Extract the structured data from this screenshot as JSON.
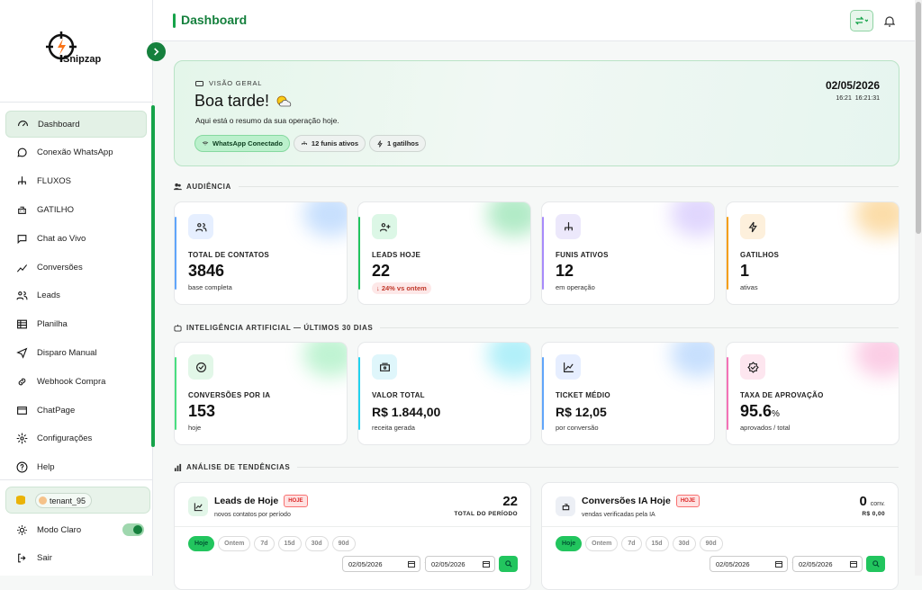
{
  "sidebar": {
    "brand": "Snipzap",
    "menu": [
      "Dashboard",
      "Conexão WhatsApp",
      "FLUXOS",
      "GATILHO",
      "Chat ao Vivo",
      "Conversões",
      "Leads",
      "Planilha",
      "Disparo Manual",
      "Webhook Compra",
      "ChatPage",
      "Configurações",
      "Help"
    ],
    "tenant": "tenant_95",
    "theme": "Modo Claro",
    "logout": "Sair"
  },
  "header": {
    "title": "Dashboard"
  },
  "overview": {
    "eyebrow": "VISÃO GERAL",
    "greeting": "Boa tarde!",
    "subtitle": "Aqui está o resumo da sua operação hoje.",
    "badges": [
      "WhatsApp Conectado",
      "12 funis ativos",
      "1 gatilhos"
    ],
    "date": "02/05/2026",
    "time_short": "16:21",
    "time_long": "16:21:31"
  },
  "audience": {
    "title": "AUDIÊNCIA",
    "cards": [
      {
        "label": "TOTAL DE CONTATOS",
        "value": "3846",
        "note": "base completa"
      },
      {
        "label": "LEADS HOJE",
        "value": "22",
        "note": "↓ 24% vs ontem"
      },
      {
        "label": "FUNIS ATIVOS",
        "value": "12",
        "note": "em operação"
      },
      {
        "label": "GATILHOS",
        "value": "1",
        "note": "ativas"
      }
    ]
  },
  "ai": {
    "title": "INTELIGÊNCIA ARTIFICIAL — ÚLTIMOS 30 DIAS",
    "cards": [
      {
        "label": "CONVERSÕES POR IA",
        "value": "153",
        "note": "hoje"
      },
      {
        "label": "VALOR TOTAL",
        "value": "R$ 1.844,00",
        "note": "receita gerada"
      },
      {
        "label": "TICKET MÉDIO",
        "value": "R$ 12,05",
        "note": "por conversão"
      },
      {
        "label": "TAXA DE APROVAÇÃO",
        "value": "95.6",
        "unit": "%",
        "note": "aprovados / total"
      }
    ]
  },
  "trends": {
    "title": "ANÁLISE DE TENDÊNCIAS",
    "cards": [
      {
        "title": "Leads de Hoje",
        "badge": "HOJE",
        "subtitle": "novos contatos por período",
        "total": "22",
        "total_label": "TOTAL DO PERÍODO",
        "filters": [
          "Hoje",
          "Ontem",
          "7d",
          "15d",
          "30d",
          "90d"
        ],
        "date_from": "02/05/2026",
        "date_to": "02/05/2026"
      },
      {
        "title": "Conversões IA Hoje",
        "badge": "HOJE",
        "subtitle": "vendas verificadas pela IA",
        "total": "0",
        "total_unit": "conv.",
        "total_label": "R$ 0,00",
        "filters": [
          "Hoje",
          "Ontem",
          "7d",
          "15d",
          "30d",
          "90d"
        ],
        "date_from": "02/05/2026",
        "date_to": "02/05/2026"
      }
    ]
  }
}
